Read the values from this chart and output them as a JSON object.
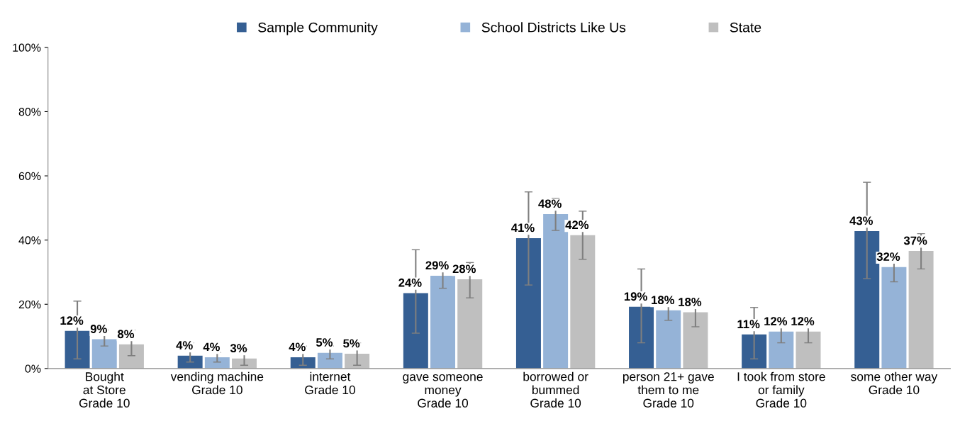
{
  "chart_data": {
    "type": "bar",
    "categories": [
      "Bought\nat Store\nGrade 10",
      "vending machine\nGrade 10",
      "internet\nGrade 10",
      "gave someone\nmoney\nGrade 10",
      "borrowed or\nbummed\nGrade 10",
      "person 21+ gave\nthem to me\nGrade 10",
      "I took from store\nor family\nGrade 10",
      "some other way\nGrade 10"
    ],
    "series": [
      {
        "name": "Sample Community",
        "color": "#355f93",
        "values": [
          11.7,
          4.0,
          3.5,
          23.5,
          40.6,
          19.2,
          10.6,
          42.8
        ],
        "value_labels": [
          "12%",
          "4%",
          "4%",
          "24%",
          "41%",
          "19%",
          "11%",
          "43%"
        ],
        "errors": [
          [
            3,
            21
          ],
          [
            2,
            8
          ],
          [
            1,
            7
          ],
          [
            11,
            37
          ],
          [
            26,
            55
          ],
          [
            8,
            31
          ],
          [
            3,
            19
          ],
          [
            28,
            58
          ]
        ]
      },
      {
        "name": "School Districts Like Us",
        "color": "#95b3d7",
        "values": [
          9.1,
          3.5,
          4.9,
          28.9,
          48.1,
          18.1,
          11.5,
          31.6
        ],
        "value_labels": [
          "9%",
          "4%",
          "5%",
          "29%",
          "48%",
          "18%",
          "12%",
          "32%"
        ],
        "errors": [
          [
            7,
            12
          ],
          [
            2,
            5
          ],
          [
            3,
            7
          ],
          [
            25,
            33
          ],
          [
            43,
            53
          ],
          [
            15,
            22
          ],
          [
            8,
            15
          ],
          [
            27,
            36
          ]
        ]
      },
      {
        "name": "State",
        "color": "#bfbfbf",
        "values": [
          7.5,
          3.1,
          4.6,
          27.8,
          41.5,
          17.5,
          11.5,
          36.6
        ],
        "value_labels": [
          "8%",
          "3%",
          "5%",
          "28%",
          "42%",
          "18%",
          "12%",
          "37%"
        ],
        "errors": [
          [
            4,
            12
          ],
          [
            1,
            6
          ],
          [
            1,
            8
          ],
          [
            22,
            33
          ],
          [
            34,
            49
          ],
          [
            13,
            22
          ],
          [
            8,
            16
          ],
          [
            31,
            42
          ]
        ]
      }
    ],
    "ylim": [
      0,
      100
    ],
    "yticks": [
      {
        "value": 0,
        "label": "0%"
      },
      {
        "value": 20,
        "label": "20%"
      },
      {
        "value": 40,
        "label": "40%"
      },
      {
        "value": 60,
        "label": "60%"
      },
      {
        "value": 80,
        "label": "80%"
      },
      {
        "value": 100,
        "label": "100%"
      }
    ],
    "grid": false,
    "legend": "top"
  }
}
